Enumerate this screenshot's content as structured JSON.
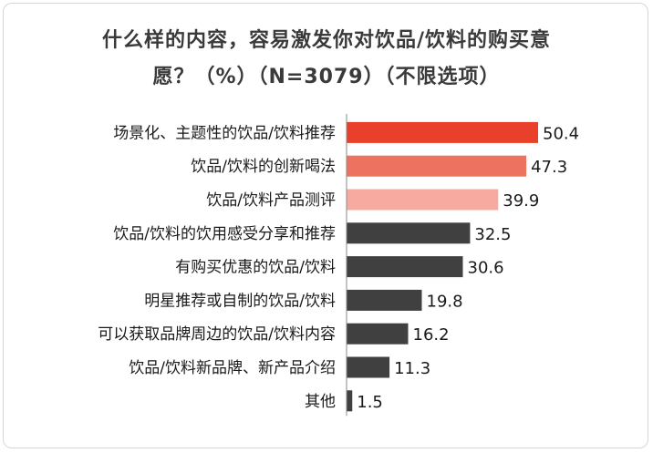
{
  "title": {
    "line1": "什么样的内容，容易激发你对饮品/饮料的购买意",
    "line2": "愿？（%）（N=3079）（不限选项）"
  },
  "chart_data": {
    "type": "bar",
    "orientation": "horizontal",
    "title": "什么样的内容，容易激发你对饮品/饮料的购买意愿？（%）（N=3079）（不限选项）",
    "categories": [
      "场景化、主题性的饮品/饮料推荐",
      "饮品/饮料的创新喝法",
      "饮品/饮料产品测评",
      "饮品/饮料的饮用感受分享和推荐",
      "有购买优惠的饮品/饮料",
      "明星推荐或自制的饮品/饮料",
      "可以获取品牌周边的饮品/饮料内容",
      "饮品/饮料新品牌、新产品介绍",
      "其他"
    ],
    "values": [
      50.4,
      47.3,
      39.9,
      32.5,
      30.6,
      19.8,
      16.2,
      11.3,
      1.5
    ],
    "colors": [
      "#e8402a",
      "#ee7260",
      "#f7aba0",
      "#404040",
      "#404040",
      "#404040",
      "#404040",
      "#404040",
      "#404040"
    ],
    "xlim": [
      0,
      50.4
    ],
    "grid": false,
    "legend": "none"
  }
}
